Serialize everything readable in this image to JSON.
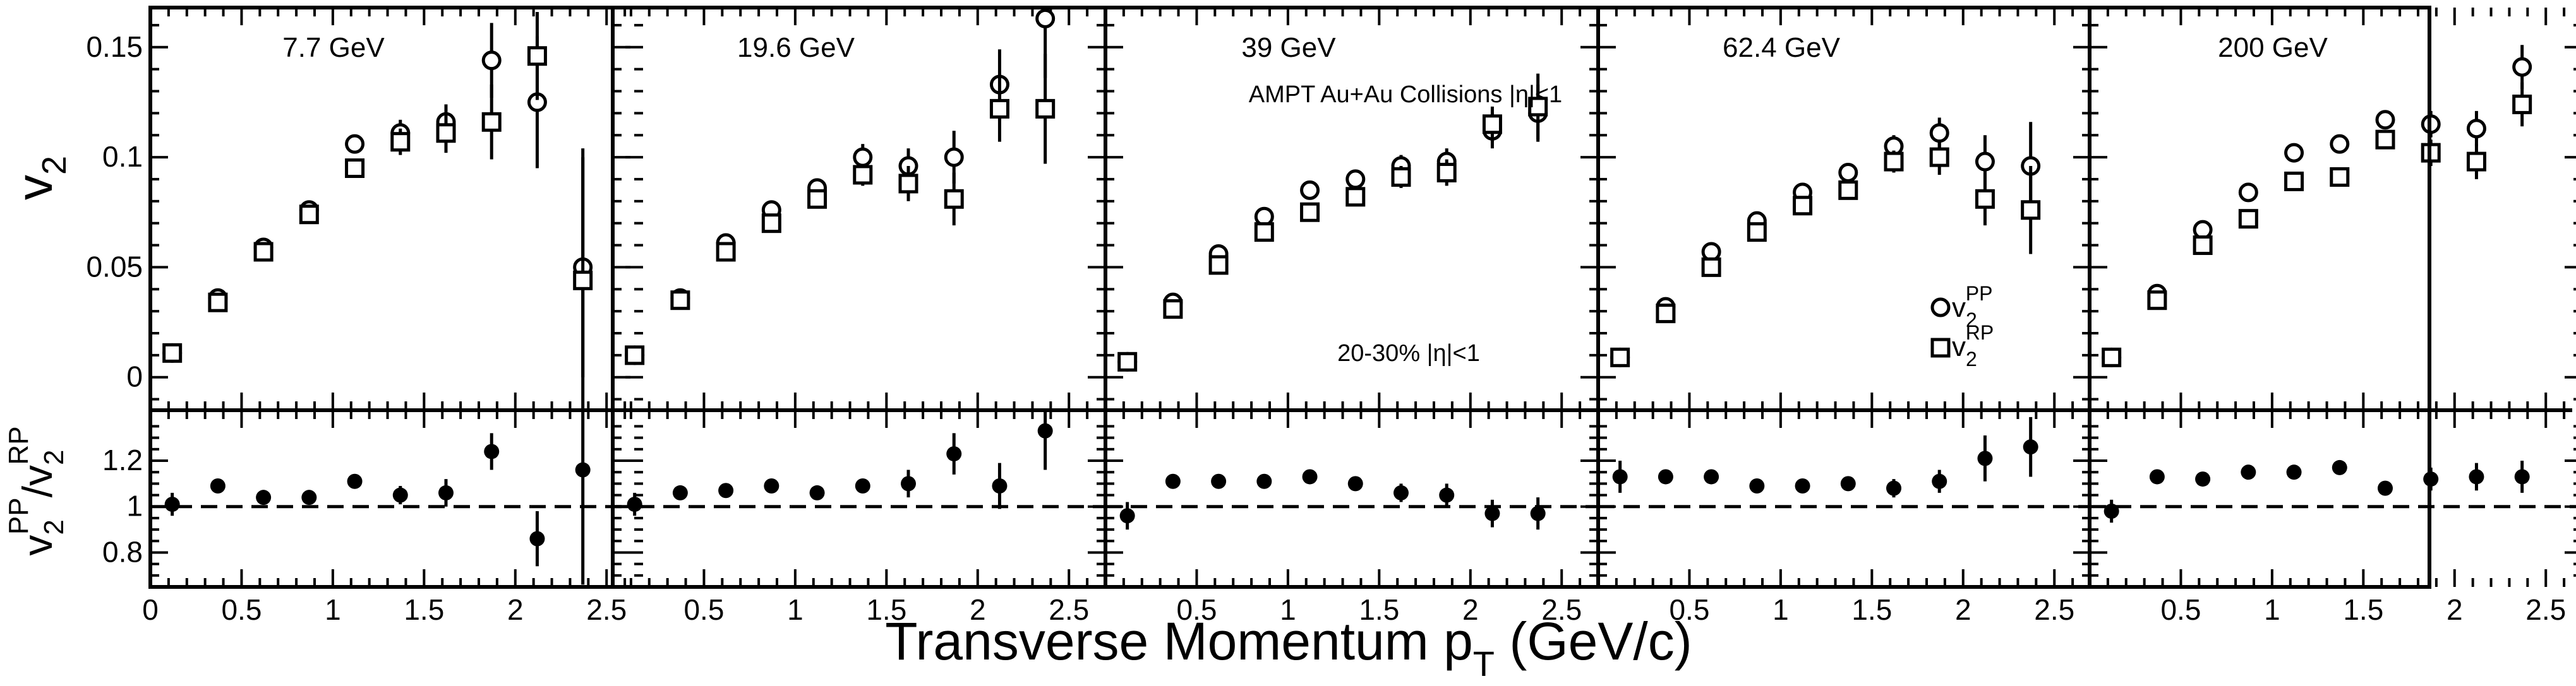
{
  "figure": {
    "xlabel": "Transverse Momentum p",
    "xlabel_sub": "T",
    "xlabel_unit": " (GeV/c)",
    "ylabel_top": "v",
    "ylabel_top_sub": "2",
    "ylabel_bottom_parts": [
      "v",
      "2",
      "PP",
      "/v",
      "2",
      "RP"
    ],
    "annotation_system": "AMPT Au+Au Collisions |η|<1",
    "annotation_centrality": "20-30% |η|<1",
    "legend": [
      {
        "marker": "circle",
        "label": "v",
        "sub": "2",
        "sup": "PP"
      },
      {
        "marker": "square",
        "label": "v",
        "sub": "2",
        "sup": "RP"
      }
    ]
  },
  "chart_data": [
    {
      "type": "scatter",
      "title": "7.7 GeV",
      "xlim": [
        0,
        2.7
      ],
      "ylim_top": [
        -0.015,
        0.168
      ],
      "ylim_bottom": [
        0.65,
        1.42
      ],
      "ratio_reference": 1.0,
      "x_ticks": [
        "0",
        "0.5",
        "1",
        "1.5",
        "2",
        "2.5"
      ],
      "y_ticks_top": [
        "0",
        "0.05",
        "0.1",
        "0.15"
      ],
      "y_ticks_bottom": [
        "0.8",
        "1",
        "1.2"
      ],
      "series": [
        {
          "name": "v2 PP",
          "marker": "circle",
          "x": [
            0.12,
            0.37,
            0.62,
            0.87,
            1.12,
            1.37,
            1.62,
            1.87,
            2.12,
            2.37
          ],
          "y": [
            0.011,
            0.036,
            0.059,
            0.076,
            0.106,
            0.111,
            0.116,
            0.144,
            0.125,
            0.05
          ],
          "err": [
            0.001,
            0.002,
            0.002,
            0.003,
            0.003,
            0.006,
            0.008,
            0.017,
            0.03,
            0.05
          ]
        },
        {
          "name": "v2 RP",
          "marker": "square",
          "x": [
            0.12,
            0.37,
            0.62,
            0.87,
            1.12,
            1.37,
            1.62,
            1.87,
            2.12,
            2.37
          ],
          "y": [
            0.011,
            0.034,
            0.057,
            0.074,
            0.095,
            0.107,
            0.111,
            0.116,
            0.146,
            0.044
          ],
          "err": [
            0.001,
            0.002,
            0.002,
            0.003,
            0.003,
            0.006,
            0.009,
            0.017,
            0.02,
            0.06
          ]
        },
        {
          "name": "v2 PP / v2 RP",
          "marker": "filled-circle",
          "x": [
            0.12,
            0.37,
            0.62,
            0.87,
            1.12,
            1.37,
            1.62,
            1.87,
            2.12,
            2.37
          ],
          "y": [
            1.01,
            1.09,
            1.04,
            1.04,
            1.11,
            1.05,
            1.06,
            1.24,
            0.86,
            1.16
          ],
          "err": [
            0.05,
            0.02,
            0.02,
            0.03,
            0.03,
            0.04,
            0.06,
            0.08,
            0.12,
            0.5
          ]
        }
      ]
    },
    {
      "type": "scatter",
      "title": "19.6 GeV",
      "xlim": [
        0,
        2.7
      ],
      "ylim_top": [
        -0.015,
        0.168
      ],
      "ylim_bottom": [
        0.65,
        1.42
      ],
      "ratio_reference": 1.0,
      "x_ticks": [
        "0.5",
        "1",
        "1.5",
        "2",
        "2.5"
      ],
      "series": [
        {
          "name": "v2 PP",
          "marker": "circle",
          "x": [
            0.12,
            0.37,
            0.62,
            0.87,
            1.12,
            1.37,
            1.62,
            1.87,
            2.12,
            2.37
          ],
          "y": [
            0.01,
            0.036,
            0.061,
            0.076,
            0.086,
            0.1,
            0.096,
            0.1,
            0.133,
            0.163
          ],
          "err": [
            0.001,
            0.002,
            0.002,
            0.003,
            0.004,
            0.006,
            0.008,
            0.012,
            0.016,
            0.027
          ]
        },
        {
          "name": "v2 RP",
          "marker": "square",
          "x": [
            0.12,
            0.37,
            0.62,
            0.87,
            1.12,
            1.37,
            1.62,
            1.87,
            2.12,
            2.37
          ],
          "y": [
            0.01,
            0.035,
            0.057,
            0.07,
            0.081,
            0.092,
            0.088,
            0.081,
            0.122,
            0.122
          ],
          "err": [
            0.001,
            0.002,
            0.002,
            0.003,
            0.004,
            0.005,
            0.008,
            0.012,
            0.015,
            0.025
          ]
        },
        {
          "name": "v2 PP / v2 RP",
          "marker": "filled-circle",
          "x": [
            0.12,
            0.37,
            0.62,
            0.87,
            1.12,
            1.37,
            1.62,
            1.87,
            2.12,
            2.37
          ],
          "y": [
            1.01,
            1.06,
            1.07,
            1.09,
            1.06,
            1.09,
            1.1,
            1.23,
            1.09,
            1.33
          ],
          "err": [
            0.05,
            0.02,
            0.02,
            0.02,
            0.03,
            0.03,
            0.06,
            0.09,
            0.1,
            0.17
          ]
        }
      ]
    },
    {
      "type": "scatter",
      "title": "39 GeV",
      "xlim": [
        0,
        2.7
      ],
      "ylim_top": [
        -0.015,
        0.168
      ],
      "ylim_bottom": [
        0.65,
        1.42
      ],
      "ratio_reference": 1.0,
      "x_ticks": [
        "0.5",
        "1",
        "1.5",
        "2",
        "2.5"
      ],
      "series": [
        {
          "name": "v2 PP",
          "marker": "circle",
          "x": [
            0.12,
            0.37,
            0.62,
            0.87,
            1.12,
            1.37,
            1.62,
            1.87,
            2.12,
            2.37
          ],
          "y": [
            0.007,
            0.034,
            0.056,
            0.073,
            0.085,
            0.09,
            0.096,
            0.098,
            0.112,
            0.12
          ],
          "err": [
            0.001,
            0.002,
            0.002,
            0.003,
            0.003,
            0.004,
            0.005,
            0.006,
            0.008,
            0.013
          ]
        },
        {
          "name": "v2 RP",
          "marker": "square",
          "x": [
            0.12,
            0.37,
            0.62,
            0.87,
            1.12,
            1.37,
            1.62,
            1.87,
            2.12,
            2.37
          ],
          "y": [
            0.007,
            0.031,
            0.051,
            0.066,
            0.075,
            0.082,
            0.091,
            0.093,
            0.115,
            0.123
          ],
          "err": [
            0.001,
            0.002,
            0.002,
            0.003,
            0.003,
            0.004,
            0.005,
            0.006,
            0.008,
            0.015
          ]
        },
        {
          "name": "v2 PP / v2 RP",
          "marker": "filled-circle",
          "x": [
            0.12,
            0.37,
            0.62,
            0.87,
            1.12,
            1.37,
            1.62,
            1.87,
            2.12,
            2.37
          ],
          "y": [
            0.96,
            1.11,
            1.11,
            1.11,
            1.13,
            1.1,
            1.06,
            1.05,
            0.97,
            0.97
          ],
          "err": [
            0.06,
            0.02,
            0.02,
            0.02,
            0.02,
            0.03,
            0.04,
            0.05,
            0.06,
            0.07
          ]
        }
      ]
    },
    {
      "type": "scatter",
      "title": "62.4 GeV",
      "xlim": [
        0,
        2.7
      ],
      "ylim_top": [
        -0.015,
        0.168
      ],
      "ylim_bottom": [
        0.65,
        1.42
      ],
      "ratio_reference": 1.0,
      "x_ticks": [
        "0.5",
        "1",
        "1.5",
        "2",
        "2.5"
      ],
      "series": [
        {
          "name": "v2 PP",
          "marker": "circle",
          "x": [
            0.12,
            0.37,
            0.62,
            0.87,
            1.12,
            1.37,
            1.62,
            1.87,
            2.12,
            2.37
          ],
          "y": [
            0.009,
            0.032,
            0.057,
            0.071,
            0.084,
            0.093,
            0.105,
            0.111,
            0.098,
            0.096
          ],
          "err": [
            0.001,
            0.002,
            0.002,
            0.002,
            0.003,
            0.003,
            0.005,
            0.007,
            0.012,
            0.02
          ]
        },
        {
          "name": "v2 RP",
          "marker": "square",
          "x": [
            0.12,
            0.37,
            0.62,
            0.87,
            1.12,
            1.37,
            1.62,
            1.87,
            2.12,
            2.37
          ],
          "y": [
            0.009,
            0.029,
            0.05,
            0.066,
            0.078,
            0.085,
            0.098,
            0.1,
            0.081,
            0.076
          ],
          "err": [
            0.001,
            0.002,
            0.002,
            0.002,
            0.003,
            0.003,
            0.005,
            0.008,
            0.012,
            0.02
          ]
        },
        {
          "name": "v2 PP / v2 RP",
          "marker": "filled-circle",
          "x": [
            0.12,
            0.37,
            0.62,
            0.87,
            1.12,
            1.37,
            1.62,
            1.87,
            2.12,
            2.37
          ],
          "y": [
            1.13,
            1.13,
            1.13,
            1.09,
            1.09,
            1.1,
            1.08,
            1.11,
            1.21,
            1.26
          ],
          "err": [
            0.07,
            0.02,
            0.02,
            0.02,
            0.02,
            0.02,
            0.04,
            0.05,
            0.1,
            0.13
          ]
        }
      ]
    },
    {
      "type": "scatter",
      "title": "200 GeV",
      "xlim": [
        0,
        2.7
      ],
      "ylim_top": [
        -0.015,
        0.168
      ],
      "ylim_bottom": [
        0.65,
        1.42
      ],
      "ratio_reference": 1.0,
      "x_ticks": [
        "0.5",
        "1",
        "1.5",
        "2",
        "2.5"
      ],
      "series": [
        {
          "name": "v2 PP",
          "marker": "circle",
          "x": [
            0.12,
            0.37,
            0.62,
            0.87,
            1.12,
            1.37,
            1.62,
            1.87,
            2.12,
            2.37
          ],
          "y": [
            0.009,
            0.038,
            0.067,
            0.084,
            0.102,
            0.106,
            0.117,
            0.115,
            0.113,
            0.141
          ],
          "err": [
            0.001,
            0.002,
            0.002,
            0.002,
            0.002,
            0.003,
            0.004,
            0.006,
            0.008,
            0.01
          ]
        },
        {
          "name": "v2 RP",
          "marker": "square",
          "x": [
            0.12,
            0.37,
            0.62,
            0.87,
            1.12,
            1.37,
            1.62,
            1.87,
            2.12,
            2.37
          ],
          "y": [
            0.009,
            0.035,
            0.06,
            0.072,
            0.089,
            0.091,
            0.108,
            0.102,
            0.098,
            0.124
          ],
          "err": [
            0.001,
            0.002,
            0.002,
            0.002,
            0.002,
            0.003,
            0.004,
            0.006,
            0.008,
            0.01
          ]
        },
        {
          "name": "v2 PP / v2 RP",
          "marker": "filled-circle",
          "x": [
            0.12,
            0.37,
            0.62,
            0.87,
            1.12,
            1.37,
            1.62,
            1.87,
            2.12,
            2.37
          ],
          "y": [
            0.98,
            1.13,
            1.12,
            1.15,
            1.15,
            1.17,
            1.08,
            1.12,
            1.13,
            1.13
          ],
          "err": [
            0.05,
            0.02,
            0.02,
            0.02,
            0.02,
            0.02,
            0.03,
            0.05,
            0.06,
            0.07
          ]
        }
      ]
    }
  ]
}
